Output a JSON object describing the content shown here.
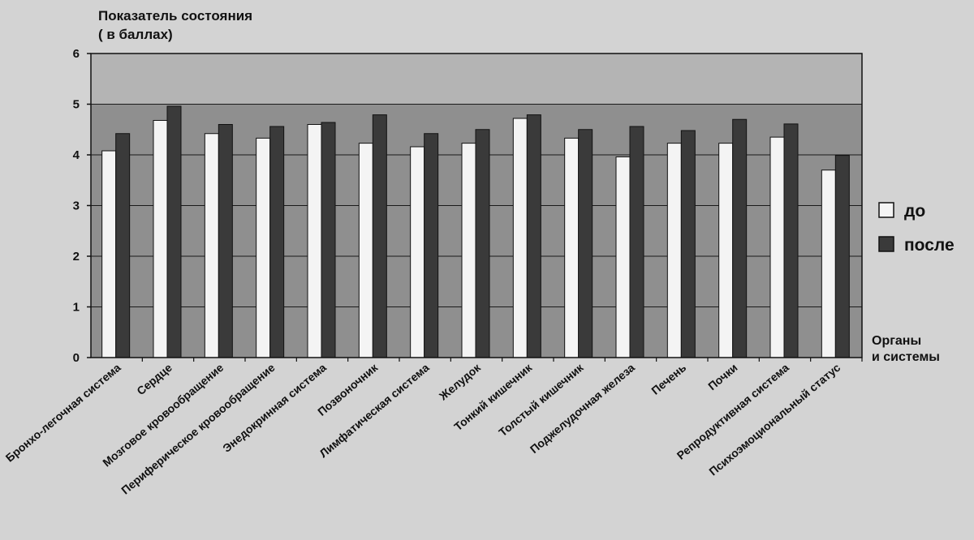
{
  "chart_data": {
    "type": "bar",
    "ylabel_lines": [
      "Показатель состояния",
      "( в баллах)"
    ],
    "xlabel_lines": [
      "Органы",
      "и системы"
    ],
    "ylim": [
      0,
      6
    ],
    "yticks": [
      0,
      1,
      2,
      3,
      4,
      5,
      6
    ],
    "grid": true,
    "legend_position": "right",
    "categories": [
      "Бронхо-легочная система",
      "Сердце",
      "Мозговое кровообращение",
      "Периферическое кровообращение",
      "Энедокринная система",
      "Позвоночник",
      "Лимфатическая система",
      "Желудок",
      "Тонкий кишечник",
      "Толстый кишечник",
      "Поджелудочная железа",
      "Печень",
      "Почки",
      "Репродуктивная система",
      "Психоэмоциональный статус"
    ],
    "series": [
      {
        "name": "до",
        "color": "#f4f4f4",
        "values": [
          4.08,
          4.68,
          4.42,
          4.33,
          4.6,
          4.23,
          4.16,
          4.23,
          4.72,
          4.33,
          3.96,
          4.23,
          4.23,
          4.35,
          3.7
        ]
      },
      {
        "name": "после",
        "color": "#3a3a3a",
        "values": [
          4.42,
          4.96,
          4.6,
          4.56,
          4.64,
          4.79,
          4.42,
          4.5,
          4.79,
          4.5,
          4.56,
          4.48,
          4.7,
          4.61,
          3.99
        ]
      }
    ],
    "colors": {
      "plot_upper_band": "#b4b4b4",
      "plot_lower_band": "#8f8f8f",
      "background": "#d3d3d3"
    }
  }
}
